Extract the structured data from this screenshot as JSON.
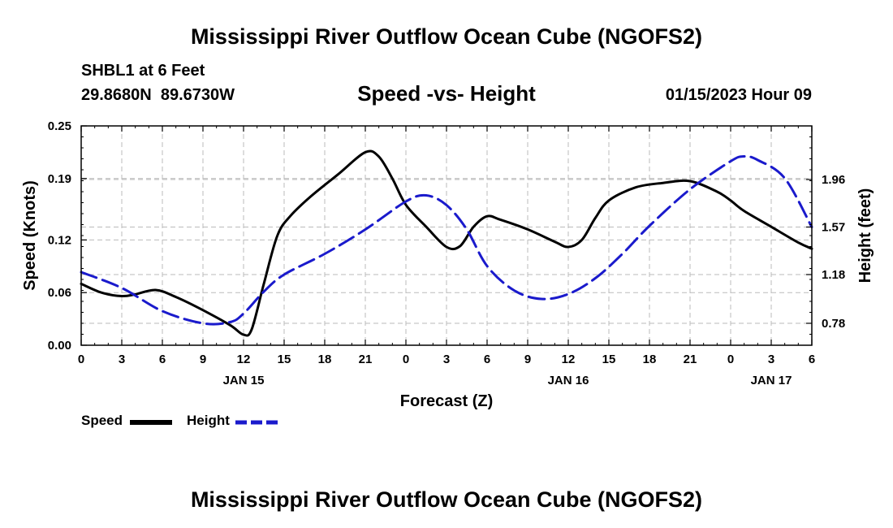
{
  "page": {
    "title": "Mississippi River Outflow Ocean Cube (NGOFS2)",
    "title_repeat": "Mississippi River Outflow Ocean Cube (NGOFS2)",
    "station": "SHBL1 at 6 Feet",
    "coords": "29.8680N  89.6730W",
    "subtitle": "Speed -vs- Height",
    "timestamp": "01/15/2023 Hour 09"
  },
  "legend": {
    "speed_label": "Speed",
    "height_label": "Height"
  },
  "colors": {
    "speed": "#000000",
    "height": "#1a1acc",
    "grid": "#bbbbbb"
  },
  "chart_data": {
    "type": "line",
    "title": "Speed -vs- Height",
    "xlabel": "Forecast (Z)",
    "ylabel": "Speed (Knots)",
    "ylabel_right": "Height (feet)",
    "x_range": [
      0,
      54
    ],
    "x_ticks": [
      0,
      3,
      6,
      9,
      12,
      15,
      18,
      21,
      24,
      27,
      30,
      33,
      36,
      39,
      42,
      45,
      48,
      51,
      54
    ],
    "x_tick_labels": [
      "0",
      "3",
      "6",
      "9",
      "12",
      "15",
      "18",
      "21",
      "0",
      "3",
      "6",
      "9",
      "12",
      "15",
      "18",
      "21",
      "0",
      "3",
      "6"
    ],
    "date_labels": [
      {
        "x": 12,
        "label": "JAN 15"
      },
      {
        "x": 36,
        "label": "JAN 16"
      },
      {
        "x": 51,
        "label": "JAN 17"
      }
    ],
    "ylim": [
      0,
      0.25
    ],
    "y_ticks": [
      0,
      0.06,
      0.12,
      0.19,
      0.25
    ],
    "y_tick_labels": [
      "0.00",
      "0.06",
      "0.12",
      "0.19",
      "0.25"
    ],
    "ylim_right": [
      0.6,
      2.4
    ],
    "y_right_ticks": [
      0.78,
      1.18,
      1.57,
      1.96
    ],
    "y_right_tick_labels": [
      "0.78",
      "1.18",
      "1.57",
      "1.96"
    ],
    "series": [
      {
        "name": "Speed",
        "axis": "left",
        "x": [
          0,
          1.5,
          3,
          4,
          5.5,
          7,
          9,
          11,
          12,
          12.6,
          13.5,
          14.5,
          15.5,
          17,
          19,
          21,
          22,
          23,
          24,
          25.5,
          27,
          28,
          29,
          30,
          31,
          33,
          35,
          36,
          37,
          38,
          39,
          41,
          43,
          45,
          47,
          48,
          49,
          51,
          53,
          54
        ],
        "values": [
          0.07,
          0.06,
          0.056,
          0.058,
          0.063,
          0.055,
          0.04,
          0.023,
          0.012,
          0.018,
          0.07,
          0.125,
          0.148,
          0.17,
          0.195,
          0.22,
          0.215,
          0.19,
          0.16,
          0.135,
          0.112,
          0.113,
          0.135,
          0.147,
          0.143,
          0.132,
          0.118,
          0.112,
          0.12,
          0.145,
          0.165,
          0.18,
          0.185,
          0.187,
          0.175,
          0.165,
          0.153,
          0.135,
          0.117,
          0.11
        ]
      },
      {
        "name": "Height",
        "axis": "right",
        "x": [
          0,
          3,
          6,
          9,
          11,
          12,
          13.5,
          15,
          18,
          21,
          24,
          25.5,
          27,
          28.5,
          30,
          32,
          34,
          36,
          38,
          40,
          42,
          45,
          48,
          49,
          50,
          52,
          54
        ],
        "values": [
          1.2,
          1.07,
          0.88,
          0.78,
          0.79,
          0.86,
          1.04,
          1.18,
          1.35,
          1.55,
          1.78,
          1.83,
          1.75,
          1.55,
          1.25,
          1.05,
          0.98,
          1.02,
          1.15,
          1.35,
          1.58,
          1.88,
          2.11,
          2.15,
          2.12,
          1.97,
          1.57
        ]
      }
    ],
    "grid": true,
    "legend_position": "bottom-left"
  }
}
